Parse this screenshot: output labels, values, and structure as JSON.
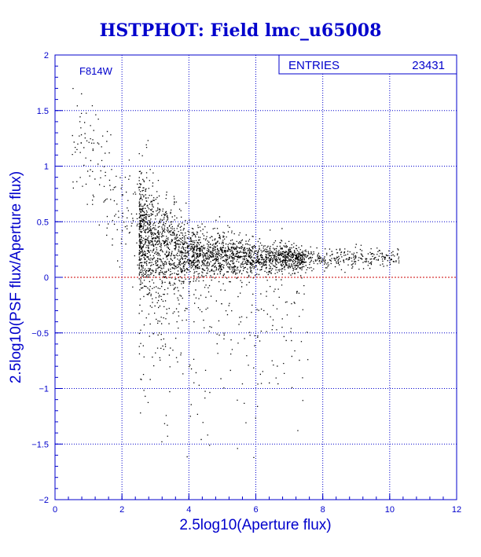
{
  "title": "HSTPHOT: Field lmc_u65008",
  "filter_label": "F814W",
  "stats": {
    "label": "ENTRIES",
    "value": "23431"
  },
  "colors": {
    "axis": "#0000cc",
    "grid": "#0000cc",
    "points": "#000000",
    "zero_line": "#cc0000",
    "title": "#0000cc"
  },
  "chart_data": {
    "type": "scatter",
    "title": "HSTPHOT: Field lmc_u65008",
    "xlabel": "2.5log10(Aperture flux)",
    "ylabel": "2.5log10(PSF flux/Aperture flux)",
    "xlim": [
      0,
      12
    ],
    "ylim": [
      -2,
      2
    ],
    "x_ticks": [
      0,
      2,
      4,
      6,
      8,
      10,
      12
    ],
    "y_ticks": [
      -2,
      -1.5,
      -1,
      -0.5,
      0,
      0.5,
      1,
      1.5,
      2
    ],
    "grid": true,
    "reference_line": {
      "y": 0
    },
    "entries": 23431,
    "density_profile": [
      {
        "x": 1.0,
        "ridge_y": 1.2,
        "spread": 0.25
      },
      {
        "x": 2.0,
        "ridge_y": 0.6,
        "spread": 0.3
      },
      {
        "x": 3.0,
        "ridge_y": 0.3,
        "spread": 0.25
      },
      {
        "x": 4.0,
        "ridge_y": 0.22,
        "spread": 0.12
      },
      {
        "x": 6.0,
        "ridge_y": 0.18,
        "spread": 0.07
      },
      {
        "x": 8.0,
        "ridge_y": 0.17,
        "spread": 0.05
      },
      {
        "x": 10.0,
        "ridge_y": 0.18,
        "spread": 0.04
      }
    ]
  }
}
